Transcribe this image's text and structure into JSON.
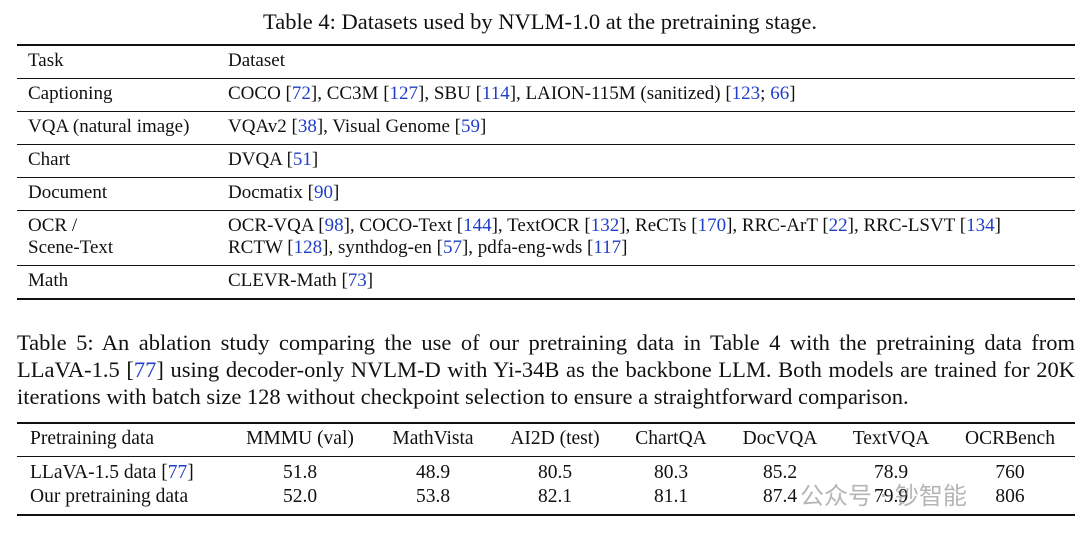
{
  "table4": {
    "label": "Table 4:",
    "caption": "Datasets used by NVLM-1.0 at the pretraining stage.",
    "header": [
      "Task",
      "Dataset"
    ],
    "rows": [
      {
        "task": [
          "Captioning"
        ],
        "dataset": [
          [
            {
              "t": "COCO ["
            },
            {
              "c": "72"
            },
            {
              "t": "], CC3M ["
            },
            {
              "c": "127"
            },
            {
              "t": "], SBU ["
            },
            {
              "c": "114"
            },
            {
              "t": "], LAION-115M (sanitized) ["
            },
            {
              "c": "123"
            },
            {
              "t": "; "
            },
            {
              "c": "66"
            },
            {
              "t": "]"
            }
          ]
        ]
      },
      {
        "task": [
          "VQA (natural image)"
        ],
        "dataset": [
          [
            {
              "t": "VQAv2 ["
            },
            {
              "c": "38"
            },
            {
              "t": "], Visual Genome ["
            },
            {
              "c": "59"
            },
            {
              "t": "]"
            }
          ]
        ]
      },
      {
        "task": [
          "Chart"
        ],
        "dataset": [
          [
            {
              "t": "DVQA ["
            },
            {
              "c": "51"
            },
            {
              "t": "]"
            }
          ]
        ]
      },
      {
        "task": [
          "Document"
        ],
        "dataset": [
          [
            {
              "t": "Docmatix ["
            },
            {
              "c": "90"
            },
            {
              "t": "]"
            }
          ]
        ]
      },
      {
        "task": [
          "OCR /",
          "Scene-Text"
        ],
        "dataset": [
          [
            {
              "t": "OCR-VQA ["
            },
            {
              "c": "98"
            },
            {
              "t": "], COCO-Text ["
            },
            {
              "c": "144"
            },
            {
              "t": "], TextOCR ["
            },
            {
              "c": "132"
            },
            {
              "t": "], ReCTs ["
            },
            {
              "c": "170"
            },
            {
              "t": "], RRC-ArT ["
            },
            {
              "c": "22"
            },
            {
              "t": "], RRC-LSVT ["
            },
            {
              "c": "134"
            },
            {
              "t": "]"
            }
          ],
          [
            {
              "t": "RCTW ["
            },
            {
              "c": "128"
            },
            {
              "t": "], synthdog-en ["
            },
            {
              "c": "57"
            },
            {
              "t": "], pdfa-eng-wds ["
            },
            {
              "c": "117"
            },
            {
              "t": "]"
            }
          ]
        ]
      },
      {
        "task": [
          "Math"
        ],
        "dataset": [
          [
            {
              "t": "CLEVR-Math ["
            },
            {
              "c": "73"
            },
            {
              "t": "]"
            }
          ]
        ]
      }
    ]
  },
  "table5": {
    "label": "Table 5:",
    "caption": [
      {
        "t": " An ablation study comparing the use of our pretraining data in Table 4 with the pretraining data from LLaVA-1.5 ["
      },
      {
        "c": "77"
      },
      {
        "t": "] using decoder-only NVLM-D with Yi-34B as the backbone LLM. Both models are trained for 20K iterations with batch size 128 without checkpoint selection to ensure a straightforward comparison."
      }
    ],
    "header": [
      "Pretraining data",
      "MMMU (val)",
      "MathVista",
      "AI2D (test)",
      "ChartQA",
      "DocVQA",
      "TextVQA",
      "OCRBench"
    ],
    "rows": [
      {
        "name": [
          {
            "t": "LLaVA-1.5 data ["
          },
          {
            "c": "77"
          },
          {
            "t": "]"
          }
        ],
        "values": [
          "51.8",
          "48.9",
          "80.5",
          "80.3",
          "85.2",
          "78.9",
          "760"
        ]
      },
      {
        "name": [
          {
            "t": "Our pretraining data"
          }
        ],
        "values": [
          "52.0",
          "53.8",
          "82.1",
          "81.1",
          "87.4",
          "79.9",
          "806"
        ]
      }
    ]
  },
  "watermark": "公众号 · 钞智能"
}
